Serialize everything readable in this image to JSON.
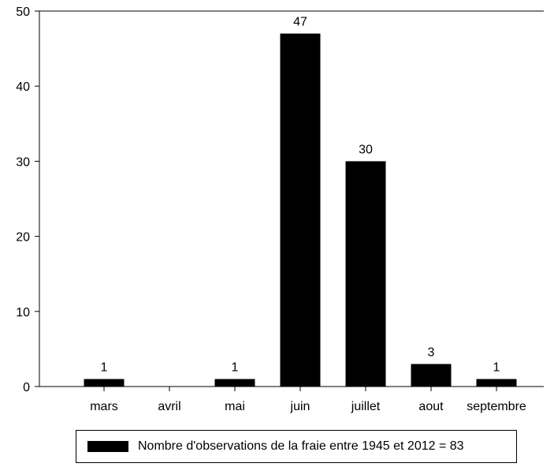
{
  "chart_data": {
    "type": "bar",
    "categories": [
      "mars",
      "avril",
      "mai",
      "juin",
      "juillet",
      "aout",
      "septembre"
    ],
    "series": [
      {
        "name": "Nombre d'observations de la fraie entre 1945 et 2012 = 83",
        "values": [
          1,
          0,
          1,
          47,
          30,
          3,
          1
        ],
        "color": "#000000"
      }
    ],
    "data_labels": [
      "1",
      "",
      "1",
      "47",
      "30",
      "3",
      "1"
    ],
    "y_ticks": [
      "0",
      "10",
      "20",
      "30",
      "40",
      "50"
    ],
    "ylim": [
      0,
      50
    ],
    "title": "",
    "xlabel": "",
    "ylabel": "",
    "grid": false,
    "legend_position": "bottom"
  }
}
